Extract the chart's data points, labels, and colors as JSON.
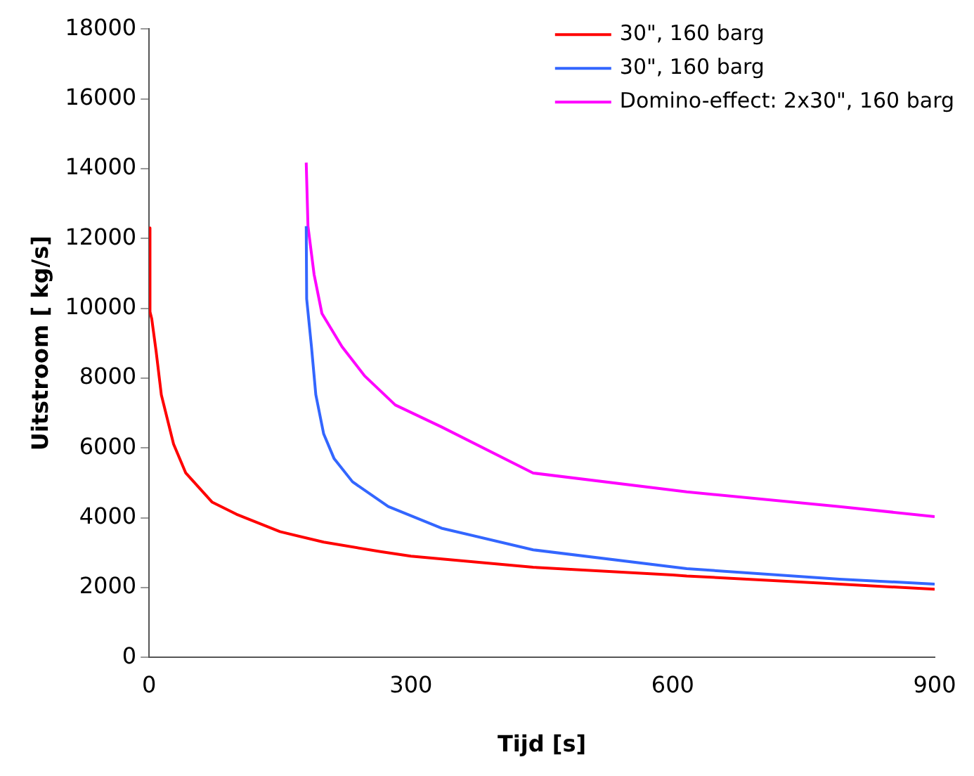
{
  "chart_data": {
    "type": "line",
    "xlabel": "Tijd [s]",
    "ylabel": "Uitstroom [ kg/s]",
    "xlim": [
      0,
      900
    ],
    "xticks": [
      0,
      300,
      600,
      900
    ],
    "ylim": [
      0,
      18000
    ],
    "yticks": [
      0,
      2000,
      4000,
      6000,
      8000,
      10000,
      12000,
      14000,
      16000,
      18000
    ],
    "grid": false,
    "legend": "top right",
    "marker": "none",
    "line_style": "solid",
    "series": [
      {
        "name": "30\", 160 barg",
        "color": "#ff0000",
        "x": [
          0,
          1,
          3,
          8,
          14,
          28,
          42,
          72,
          100,
          150,
          200,
          265,
          300,
          440,
          600,
          616,
          791,
          900
        ],
        "values": [
          12300,
          9900,
          9700,
          8770,
          7520,
          6110,
          5280,
          4450,
          4100,
          3600,
          3300,
          3030,
          2900,
          2580,
          2360,
          2330,
          2100,
          1950
        ]
      },
      {
        "name": "30\", 160 barg",
        "color": "#3366ff",
        "x": [
          180,
          180.5,
          186,
          191,
          200,
          212,
          233,
          274,
          335,
          440,
          616,
          791,
          900
        ],
        "values": [
          12350,
          10270,
          8900,
          7520,
          6400,
          5690,
          5030,
          4320,
          3700,
          3080,
          2540,
          2240,
          2100
        ]
      },
      {
        "name": "Domino-effect: 2x30\", 160 barg",
        "color": "#ff00ff",
        "x": [
          180,
          182,
          189,
          198,
          221,
          247,
          282,
          335,
          440,
          616,
          791,
          900
        ],
        "values": [
          14170,
          12350,
          10970,
          9850,
          8900,
          8060,
          7230,
          6600,
          5280,
          4740,
          4320,
          4030
        ]
      }
    ]
  }
}
